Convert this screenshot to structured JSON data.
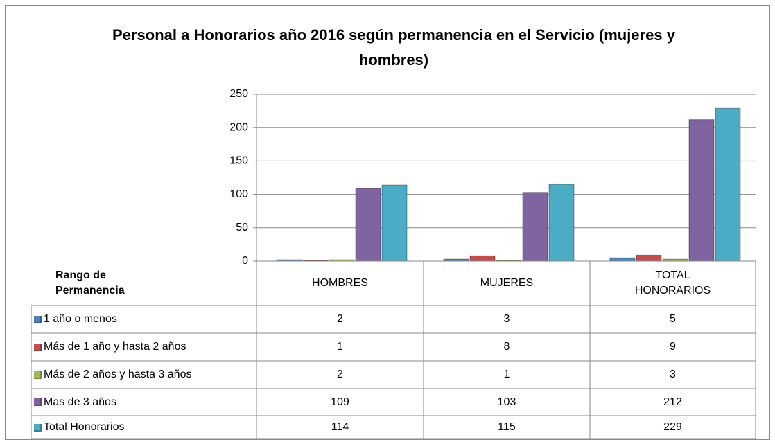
{
  "chart_data": {
    "type": "bar",
    "title": "Personal a Honorarios año 2016 según permanencia en el Servicio (mujeres y hombres)",
    "table_header": "Rango de Permanencia",
    "categories": [
      "HOMBRES",
      "MUJERES",
      "TOTAL HONORARIOS"
    ],
    "series": [
      {
        "name": "1 año o menos",
        "color": "#4f81bd",
        "values": [
          2,
          3,
          5
        ]
      },
      {
        "name": "Más de 1 año y hasta 2 años",
        "color": "#c0504d",
        "values": [
          1,
          8,
          9
        ]
      },
      {
        "name": "Más de 2 años y hasta 3 años",
        "color": "#9bbb59",
        "values": [
          2,
          1,
          3
        ]
      },
      {
        "name": "Mas de 3 años",
        "color": "#8064a2",
        "values": [
          109,
          103,
          212
        ]
      },
      {
        "name": "Total Honorarios",
        "color": "#4bacc6",
        "values": [
          114,
          115,
          229
        ]
      }
    ],
    "ylim": [
      0,
      250
    ],
    "yticks": [
      0,
      50,
      100,
      150,
      200,
      250
    ],
    "grid": true
  }
}
